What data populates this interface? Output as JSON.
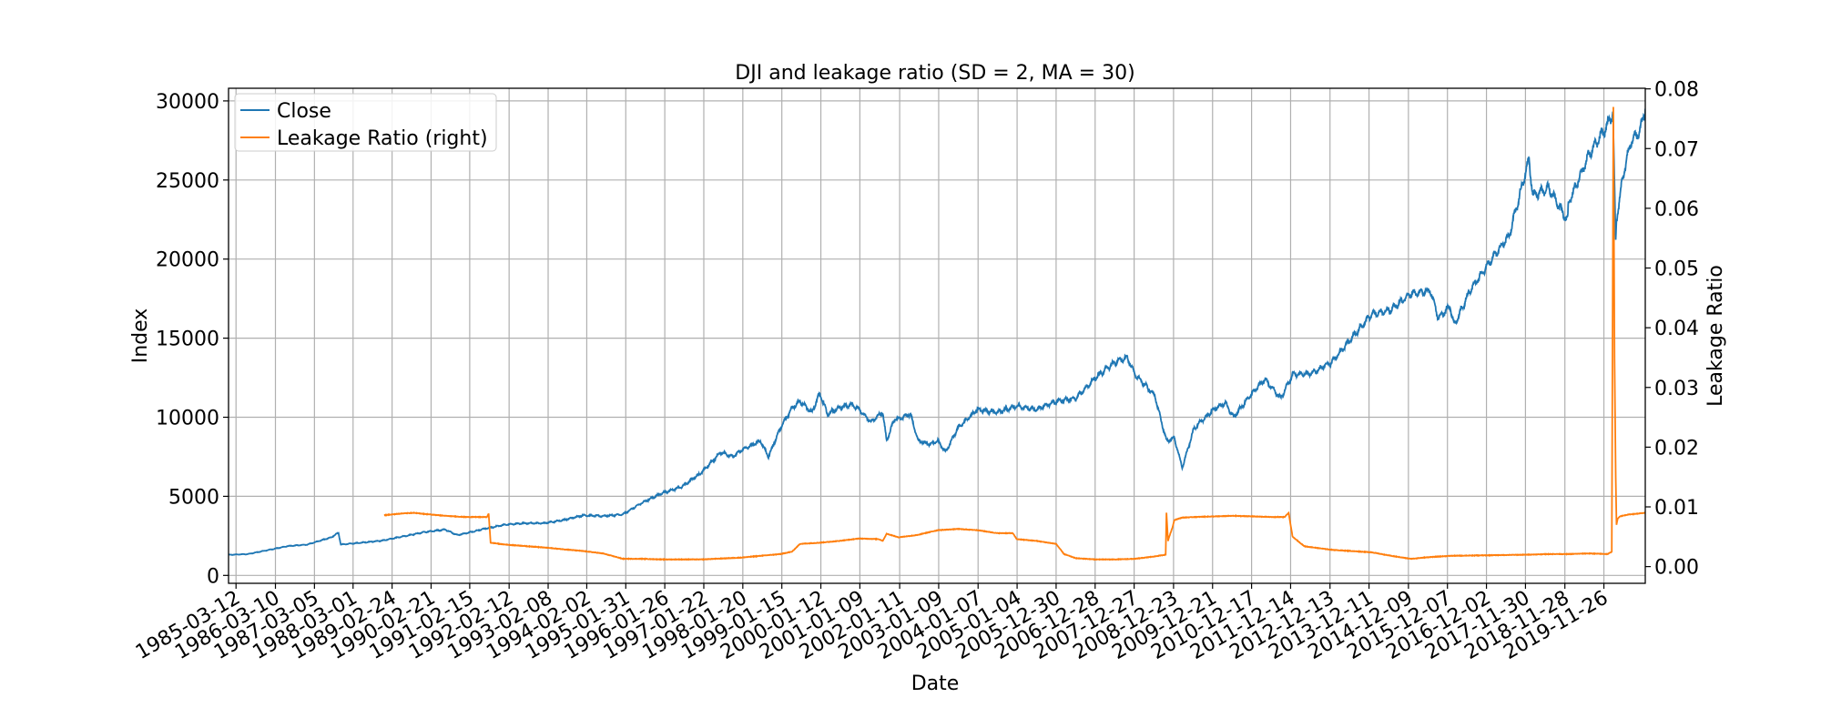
{
  "chart_data": {
    "type": "line",
    "title": "DJI and leakage ratio (SD = 2, MA = 30)",
    "xlabel": "Date",
    "ylabel": "Index",
    "ylabel_right": "Leakage Ratio",
    "ylim": [
      -500,
      30800
    ],
    "ylim_right": [
      -0.0028,
      0.0801
    ],
    "xlim": [
      1985.0,
      2020.95
    ],
    "grid": true,
    "legend_position": "top-left",
    "x_ticks": [
      {
        "x": 1985.19,
        "label": "1985-03-12"
      },
      {
        "x": 1986.19,
        "label": "1986-03-10"
      },
      {
        "x": 1987.18,
        "label": "1987-03-05"
      },
      {
        "x": 1988.16,
        "label": "1988-03-01"
      },
      {
        "x": 1989.15,
        "label": "1989-02-24"
      },
      {
        "x": 1990.14,
        "label": "1990-02-21"
      },
      {
        "x": 1991.12,
        "label": "1991-02-15"
      },
      {
        "x": 1992.12,
        "label": "1992-02-12"
      },
      {
        "x": 1993.11,
        "label": "1993-02-08"
      },
      {
        "x": 1994.09,
        "label": "1994-02-02"
      },
      {
        "x": 1995.08,
        "label": "1995-01-31"
      },
      {
        "x": 1996.07,
        "label": "1996-01-26"
      },
      {
        "x": 1997.06,
        "label": "1997-01-22"
      },
      {
        "x": 1998.05,
        "label": "1998-01-20"
      },
      {
        "x": 1999.04,
        "label": "1999-01-15"
      },
      {
        "x": 2000.03,
        "label": "2000-01-12"
      },
      {
        "x": 2001.02,
        "label": "2001-01-09"
      },
      {
        "x": 2002.03,
        "label": "2002-01-11"
      },
      {
        "x": 2003.02,
        "label": "2003-01-09"
      },
      {
        "x": 2004.02,
        "label": "2004-01-07"
      },
      {
        "x": 2005.01,
        "label": "2005-01-04"
      },
      {
        "x": 2006.0,
        "label": "2005-12-30"
      },
      {
        "x": 2006.99,
        "label": "2006-12-28"
      },
      {
        "x": 2007.98,
        "label": "2007-12-27"
      },
      {
        "x": 2008.98,
        "label": "2008-12-23"
      },
      {
        "x": 2009.97,
        "label": "2009-12-21"
      },
      {
        "x": 2010.96,
        "label": "2010-12-17"
      },
      {
        "x": 2011.95,
        "label": "2011-12-14"
      },
      {
        "x": 2012.95,
        "label": "2012-12-13"
      },
      {
        "x": 2013.94,
        "label": "2013-12-11"
      },
      {
        "x": 2014.94,
        "label": "2014-12-09"
      },
      {
        "x": 2015.93,
        "label": "2015-12-07"
      },
      {
        "x": 2016.92,
        "label": "2016-12-02"
      },
      {
        "x": 2017.91,
        "label": "2017-11-30"
      },
      {
        "x": 2018.91,
        "label": "2018-11-28"
      },
      {
        "x": 2019.9,
        "label": "2019-11-26"
      }
    ],
    "y_ticks": [
      {
        "v": 0,
        "label": "0"
      },
      {
        "v": 5000,
        "label": "5000"
      },
      {
        "v": 10000,
        "label": "10000"
      },
      {
        "v": 15000,
        "label": "15000"
      },
      {
        "v": 20000,
        "label": "20000"
      },
      {
        "v": 25000,
        "label": "25000"
      },
      {
        "v": 30000,
        "label": "30000"
      }
    ],
    "y_ticks_right": [
      {
        "v": 0.0,
        "label": "0.00"
      },
      {
        "v": 0.01,
        "label": "0.01"
      },
      {
        "v": 0.02,
        "label": "0.02"
      },
      {
        "v": 0.03,
        "label": "0.03"
      },
      {
        "v": 0.04,
        "label": "0.04"
      },
      {
        "v": 0.05,
        "label": "0.05"
      },
      {
        "v": 0.06,
        "label": "0.06"
      },
      {
        "v": 0.07,
        "label": "0.07"
      },
      {
        "v": 0.08,
        "label": "0.08"
      }
    ],
    "series": [
      {
        "name": "Close",
        "axis": "left",
        "color": "#1f77b4",
        "x": [
          1985.0,
          1985.5,
          1986.0,
          1986.5,
          1987.0,
          1987.6,
          1987.79,
          1987.85,
          1988.3,
          1988.9,
          1989.5,
          1990.0,
          1990.5,
          1990.8,
          1991.0,
          1991.5,
          1992.0,
          1992.5,
          1993.0,
          1993.5,
          1994.0,
          1994.5,
          1995.0,
          1995.5,
          1996.0,
          1996.5,
          1997.0,
          1997.5,
          1997.8,
          1998.0,
          1998.5,
          1998.7,
          1999.0,
          1999.3,
          1999.5,
          1999.8,
          2000.0,
          2000.2,
          2000.5,
          2000.8,
          2001.0,
          2001.3,
          2001.6,
          2001.7,
          2001.9,
          2002.0,
          2002.3,
          2002.5,
          2002.8,
          2003.0,
          2003.2,
          2003.5,
          2004.0,
          2004.5,
          2005.0,
          2005.5,
          2006.0,
          2006.5,
          2007.0,
          2007.5,
          2007.8,
          2008.0,
          2008.5,
          2008.8,
          2009.0,
          2009.2,
          2009.5,
          2010.0,
          2010.3,
          2010.5,
          2011.0,
          2011.3,
          2011.7,
          2012.0,
          2012.5,
          2013.0,
          2013.5,
          2014.0,
          2014.5,
          2015.0,
          2015.5,
          2015.7,
          2016.0,
          2016.1,
          2016.5,
          2017.0,
          2017.5,
          2018.0,
          2018.1,
          2018.5,
          2018.98,
          2019.0,
          2019.5,
          2020.0,
          2020.13,
          2020.2,
          2020.22,
          2020.4,
          2020.6,
          2020.8,
          2020.95
        ],
        "values": [
          1300,
          1350,
          1600,
          1850,
          1950,
          2400,
          2700,
          1950,
          2050,
          2200,
          2500,
          2750,
          2900,
          2550,
          2650,
          2950,
          3200,
          3300,
          3300,
          3500,
          3800,
          3750,
          3850,
          4600,
          5200,
          5600,
          6500,
          7800,
          7500,
          7900,
          8500,
          7500,
          9300,
          10600,
          11000,
          10300,
          11500,
          10200,
          10600,
          10800,
          10500,
          9700,
          10300,
          8500,
          9900,
          9900,
          10200,
          8500,
          8300,
          8500,
          7800,
          9300,
          10500,
          10300,
          10700,
          10500,
          11000,
          11200,
          12500,
          13500,
          13800,
          12700,
          11400,
          8500,
          8700,
          6800,
          9300,
          10500,
          10900,
          10000,
          11600,
          12400,
          11200,
          12700,
          12800,
          13500,
          15000,
          16500,
          16800,
          17800,
          18000,
          16300,
          17000,
          15800,
          18000,
          19800,
          21500,
          26300,
          24000,
          24500,
          22400,
          23500,
          26500,
          28500,
          29300,
          21000,
          22500,
          25500,
          27500,
          28000,
          29500
        ]
      },
      {
        "name": "Leakage Ratio (right)",
        "axis": "right",
        "color": "#ff7f0e",
        "x": [
          1988.95,
          1989.4,
          1989.7,
          1990.0,
          1990.5,
          1991.0,
          1991.56,
          1991.6,
          1991.65,
          1992.0,
          1993.0,
          1994.0,
          1994.5,
          1994.9,
          1995.0,
          1995.5,
          1996.0,
          1997.0,
          1998.0,
          1998.5,
          1999.0,
          1999.3,
          1999.5,
          2000.0,
          2000.5,
          2001.0,
          2001.5,
          2001.6,
          2001.7,
          2002.0,
          2002.5,
          2002.6,
          2003.0,
          2003.5,
          2004.0,
          2004.5,
          2004.9,
          2005.0,
          2005.5,
          2006.0,
          2006.2,
          2006.5,
          2007.0,
          2007.5,
          2008.0,
          2008.5,
          2008.78,
          2008.8,
          2008.84,
          2008.87,
          2008.95,
          2009.0,
          2009.2,
          2009.5,
          2010.0,
          2010.5,
          2011.0,
          2011.5,
          2011.8,
          2011.9,
          2012.0,
          2012.3,
          2013.0,
          2014.0,
          2014.5,
          2015.0,
          2015.5,
          2016.0,
          2017.0,
          2018.0,
          2018.5,
          2019.0,
          2019.5,
          2020.0,
          2020.1,
          2020.14,
          2020.17,
          2020.2,
          2020.22,
          2020.25,
          2020.3,
          2020.5,
          2020.95
        ],
        "values": [
          0.0086,
          0.0089,
          0.009,
          0.0088,
          0.0085,
          0.0083,
          0.0083,
          0.0089,
          0.004,
          0.0037,
          0.0032,
          0.0026,
          0.0022,
          0.0015,
          0.0013,
          0.0013,
          0.0012,
          0.0012,
          0.0015,
          0.0018,
          0.0021,
          0.0025,
          0.0038,
          0.004,
          0.0043,
          0.0047,
          0.0046,
          0.0043,
          0.0055,
          0.0049,
          0.0053,
          0.0055,
          0.0061,
          0.0063,
          0.0061,
          0.0056,
          0.0056,
          0.0046,
          0.0043,
          0.0038,
          0.0021,
          0.0014,
          0.0012,
          0.0012,
          0.0013,
          0.0017,
          0.002,
          0.009,
          0.0043,
          0.005,
          0.0065,
          0.0078,
          0.0082,
          0.0083,
          0.0084,
          0.0085,
          0.0084,
          0.0083,
          0.0083,
          0.009,
          0.005,
          0.0034,
          0.0028,
          0.0024,
          0.0018,
          0.0013,
          0.0016,
          0.0018,
          0.0019,
          0.002,
          0.0021,
          0.0021,
          0.0022,
          0.0021,
          0.0025,
          0.077,
          0.035,
          0.015,
          0.007,
          0.008,
          0.0084,
          0.0087,
          0.009
        ]
      }
    ]
  }
}
